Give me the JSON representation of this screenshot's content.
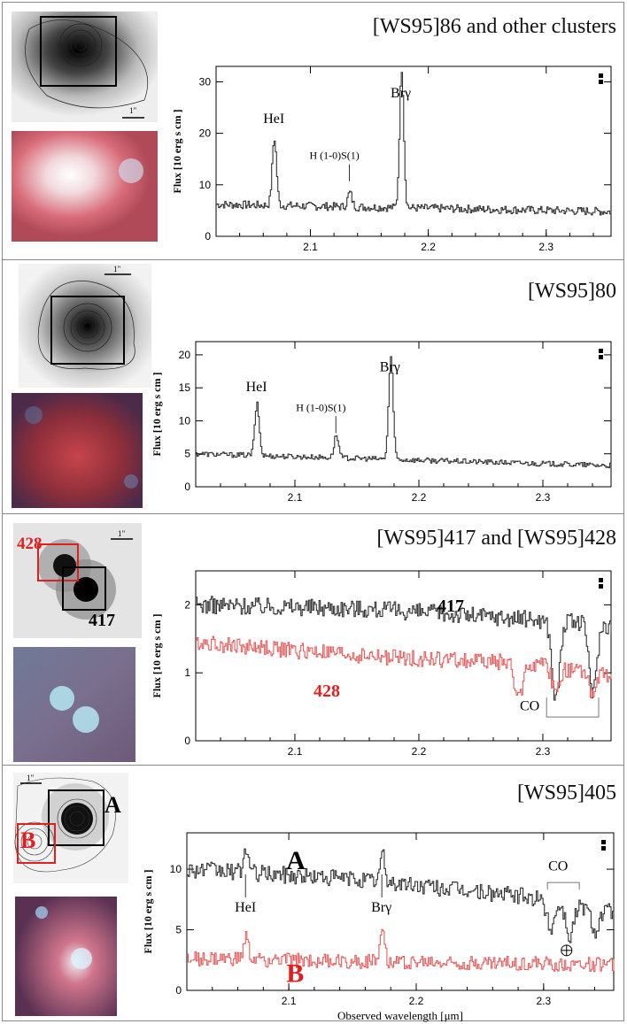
{
  "colors": {
    "black_series": "#333333",
    "red_series": "#e06060",
    "red_label": "#e02020"
  },
  "x_label": "Observed wavelength [μm]",
  "y_label": "Flux [10   erg s   cm  ]",
  "scale_label": "1\"",
  "chart_data": [
    {
      "type": "line",
      "title": "[WS95]86 and other clusters",
      "xlim": [
        2.02,
        2.355
      ],
      "ylim": [
        0,
        33
      ],
      "xticks": [
        2.1,
        2.2,
        2.3
      ],
      "yticks": [
        0,
        10,
        20,
        30
      ],
      "series": [
        {
          "name": "[WS95]86",
          "color": "black",
          "baseline": [
            [
              2.02,
              6.2
            ],
            [
              2.355,
              4.8
            ]
          ],
          "noise": 0.8,
          "lines": [
            [
              2.069,
              19
            ],
            [
              2.133,
              8.5
            ],
            [
              2.177,
              32.5
            ]
          ],
          "dips": []
        }
      ],
      "annotations": [
        {
          "text": "HeI",
          "x": 2.069,
          "y": 22,
          "type": "label"
        },
        {
          "text": "H (1-0)S(1)",
          "x": 2.133,
          "y": 15,
          "type": "label"
        },
        {
          "text": "Brγ",
          "x": 2.177,
          "y": 27,
          "type": "label"
        }
      ]
    },
    {
      "type": "line",
      "title": "[WS95]80",
      "xlim": [
        2.02,
        2.355
      ],
      "ylim": [
        0,
        22
      ],
      "xticks": [
        2.1,
        2.2,
        2.3
      ],
      "yticks": [
        0,
        5,
        10,
        15,
        20
      ],
      "series": [
        {
          "name": "[WS95]80",
          "color": "black",
          "baseline": [
            [
              2.02,
              5.0
            ],
            [
              2.355,
              3.2
            ]
          ],
          "noise": 0.4,
          "lines": [
            [
              2.069,
              12.5
            ],
            [
              2.133,
              7.8
            ],
            [
              2.177,
              19.5
            ]
          ],
          "dips": []
        }
      ],
      "annotations": [
        {
          "text": "HeI",
          "x": 2.069,
          "y": 14.5,
          "type": "label"
        },
        {
          "text": "H (1-0)S(1)",
          "x": 2.133,
          "y": 11.5,
          "type": "label"
        },
        {
          "text": "Brγ",
          "x": 2.177,
          "y": 17.5,
          "type": "label"
        }
      ]
    },
    {
      "type": "line",
      "title": "[WS95]417  and [WS95]428",
      "xlim": [
        2.02,
        2.355
      ],
      "ylim": [
        0,
        2.5
      ],
      "xticks": [
        2.1,
        2.2,
        2.3
      ],
      "yticks": [
        0,
        1,
        2
      ],
      "series": [
        {
          "name": "417",
          "color": "black",
          "baseline": [
            [
              2.02,
              2.0
            ],
            [
              2.15,
              1.95
            ],
            [
              2.28,
              1.8
            ],
            [
              2.355,
              1.7
            ]
          ],
          "noise": 0.13,
          "lines": [],
          "dips": [
            [
              2.31,
              0.6
            ],
            [
              2.34,
              0.7
            ]
          ]
        },
        {
          "name": "428",
          "color": "red",
          "baseline": [
            [
              2.02,
              1.45
            ],
            [
              2.15,
              1.25
            ],
            [
              2.28,
              1.15
            ],
            [
              2.355,
              0.95
            ]
          ],
          "noise": 0.12,
          "lines": [],
          "dips": [
            [
              2.28,
              0.6
            ],
            [
              2.31,
              0.75
            ],
            [
              2.34,
              0.7
            ]
          ]
        }
      ],
      "annotations": [
        {
          "text": "417",
          "x": 2.215,
          "y": 1.9,
          "type": "series-label",
          "color": "black"
        },
        {
          "text": "428",
          "x": 2.115,
          "y": 0.65,
          "type": "series-label",
          "color": "red"
        },
        {
          "text": "CO",
          "x": 2.29,
          "y": 0.45,
          "type": "label"
        }
      ],
      "co_bracket": [
        2.303,
        2.345,
        0.35
      ]
    },
    {
      "type": "line",
      "title": "[WS95]405",
      "xlim": [
        2.02,
        2.355
      ],
      "ylim": [
        0,
        13
      ],
      "xticks": [
        2.1,
        2.2,
        2.3
      ],
      "yticks": [
        0,
        5,
        10
      ],
      "series": [
        {
          "name": "A",
          "color": "black",
          "baseline": [
            [
              2.02,
              10.0
            ],
            [
              2.15,
              9.2
            ],
            [
              2.28,
              7.8
            ],
            [
              2.355,
              6.5
            ]
          ],
          "noise": 0.7,
          "lines": [
            [
              2.066,
              11.8
            ],
            [
              2.173,
              11.2
            ]
          ],
          "dips": [
            [
              2.305,
              5.2
            ],
            [
              2.32,
              4.5
            ],
            [
              2.34,
              5.0
            ]
          ]
        },
        {
          "name": "B",
          "color": "red",
          "baseline": [
            [
              2.02,
              2.6
            ],
            [
              2.355,
              2.1
            ]
          ],
          "noise": 0.6,
          "lines": [
            [
              2.066,
              4.4
            ],
            [
              2.173,
              5.6
            ]
          ],
          "dips": []
        }
      ],
      "annotations": [
        {
          "text": "A",
          "x": 2.098,
          "y": 10.0,
          "type": "series-label",
          "color": "black"
        },
        {
          "text": "B",
          "x": 2.098,
          "y": 0.7,
          "type": "series-label",
          "color": "red"
        },
        {
          "text": "HeI",
          "x": 2.066,
          "y": 6.5,
          "type": "label"
        },
        {
          "text": "Brγ",
          "x": 2.173,
          "y": 6.5,
          "type": "label"
        },
        {
          "text": "CO",
          "x": 2.312,
          "y": 9.9,
          "type": "label"
        }
      ],
      "co_bracket_top": [
        2.303,
        2.328,
        8.9
      ],
      "earth_symbol_x": 2.318
    }
  ],
  "thumbs": [
    {
      "labels": []
    },
    {
      "labels": []
    },
    {
      "labels": [
        {
          "text": "428",
          "color": "red"
        },
        {
          "text": "417",
          "color": "black"
        }
      ]
    },
    {
      "labels": [
        {
          "text": "A",
          "color": "black"
        },
        {
          "text": "B",
          "color": "red"
        }
      ]
    }
  ]
}
